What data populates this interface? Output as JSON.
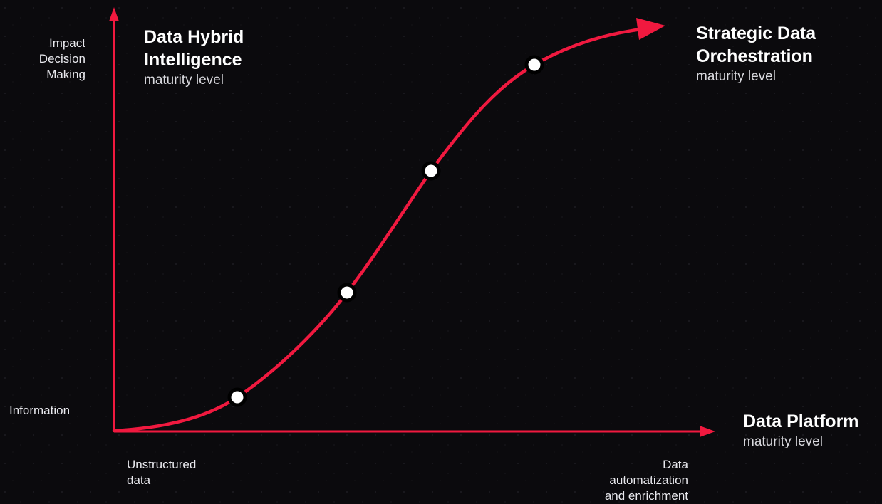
{
  "axes": {
    "y_top_label": [
      "Impact",
      "Decision",
      "Making"
    ],
    "y_bottom_label": "Information",
    "x_left_label": [
      "Unstructured",
      "data"
    ],
    "x_right_label": [
      "Data",
      "automatization",
      "and enrichment"
    ]
  },
  "maturity_levels": [
    {
      "title": [
        "Data Hybrid",
        "Intelligence"
      ],
      "subtitle": "maturity level"
    },
    {
      "title": [
        "Strategic Data",
        "Orchestration"
      ],
      "subtitle": "maturity level"
    },
    {
      "title": [
        "Data Platform"
      ],
      "subtitle": "maturity level"
    }
  ],
  "colors": {
    "background": "#0b0a0d",
    "accent": "#f0193f",
    "node_fill": "#ffffff",
    "node_stroke": "#000000"
  },
  "curve": {
    "nodes": 4,
    "icon": "s-curve-arrow"
  }
}
